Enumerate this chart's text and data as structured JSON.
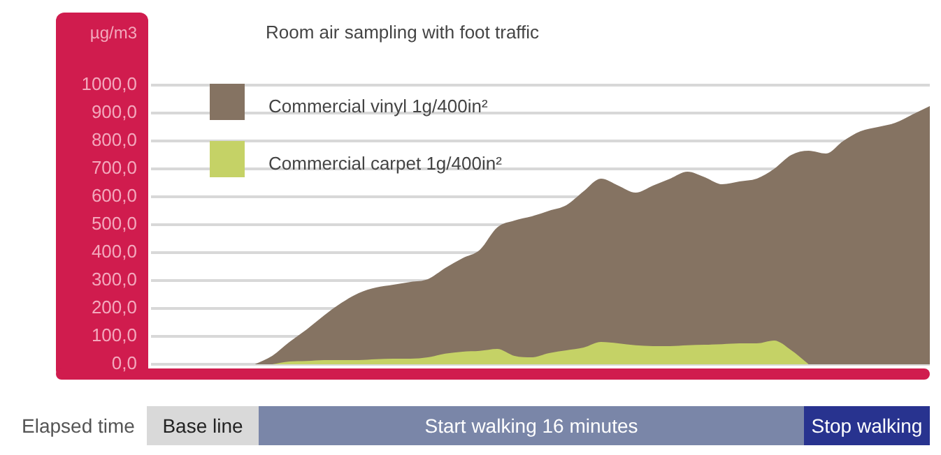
{
  "chart_data": {
    "type": "area",
    "title": "Room air sampling with foot traffic",
    "ylabel": "µg/m3",
    "categories": [
      null,
      null,
      null,
      null,
      null,
      null,
      null,
      null,
      null,
      null,
      null,
      null,
      null,
      null,
      null,
      null,
      null,
      null,
      null,
      null,
      null,
      null,
      null,
      null,
      null,
      null,
      null,
      null,
      null,
      null,
      null,
      null,
      null,
      null,
      null,
      null,
      null,
      null,
      null,
      null,
      null,
      null,
      null,
      null,
      null,
      null
    ],
    "series": [
      {
        "name": "Commercial vinyl 1g/400in²",
        "color": "#857362",
        "values": [
          null,
          null,
          null,
          null,
          null,
          null,
          0,
          30,
          80,
          125,
          175,
          220,
          255,
          275,
          285,
          295,
          305,
          345,
          380,
          410,
          490,
          515,
          530,
          550,
          570,
          620,
          665,
          640,
          615,
          640,
          665,
          690,
          670,
          645,
          655,
          665,
          700,
          750,
          765,
          755,
          800,
          835,
          850,
          865,
          895,
          925
        ]
      },
      {
        "name": "Commercial carpet 1g/400in²",
        "color": "#c5d266",
        "values": [
          null,
          null,
          null,
          null,
          null,
          null,
          null,
          0,
          10,
          12,
          15,
          15,
          15,
          18,
          20,
          20,
          25,
          38,
          45,
          48,
          55,
          30,
          25,
          40,
          50,
          60,
          80,
          75,
          68,
          65,
          65,
          68,
          70,
          72,
          75,
          75,
          85,
          50,
          0,
          null,
          null,
          null,
          null,
          null,
          null,
          null
        ]
      }
    ],
    "ylim": [
      0,
      1000
    ],
    "yticks": [
      {
        "value": 0,
        "label": "0,0"
      },
      {
        "value": 100,
        "label": "100,0"
      },
      {
        "value": 200,
        "label": "200,0"
      },
      {
        "value": 300,
        "label": "300,0"
      },
      {
        "value": 400,
        "label": "400,0"
      },
      {
        "value": 500,
        "label": "500,0"
      },
      {
        "value": 600,
        "label": "600,0"
      },
      {
        "value": 700,
        "label": "700,0"
      },
      {
        "value": 800,
        "label": "800,0"
      },
      {
        "value": 900,
        "label": "900,0"
      },
      {
        "value": 1000,
        "label": "1000,0"
      }
    ],
    "grid": "y",
    "legend": "top left",
    "annotations": [
      "Elapsed time",
      "Base line",
      "Start walking 16 minutes",
      "Stop walking"
    ]
  }
}
